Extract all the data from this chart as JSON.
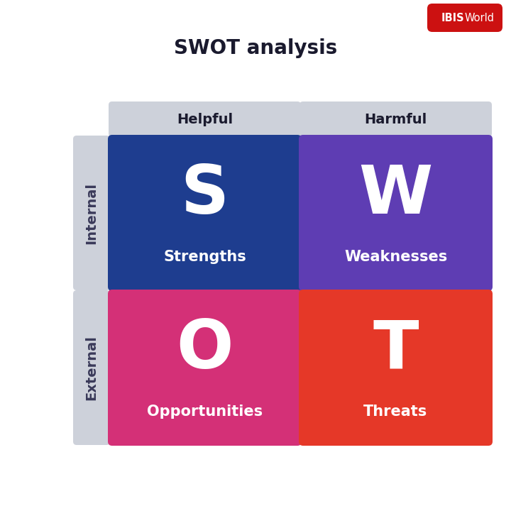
{
  "title": "SWOT analysis",
  "title_fontsize": 20,
  "title_color": "#1a1a2e",
  "background_color": "#ffffff",
  "col_headers": [
    "Helpful",
    "Harmful"
  ],
  "row_headers": [
    "Internal",
    "External"
  ],
  "header_bg_color": "#cdd1da",
  "header_text_color": "#1a1a2e",
  "header_fontsize": 14,
  "row_label_fontsize": 14,
  "row_label_color": "#3a3a5a",
  "cells": [
    {
      "letter": "S",
      "label": "Strengths",
      "bg_color": "#1e3d8f",
      "row": 0,
      "col": 0
    },
    {
      "letter": "W",
      "label": "Weaknesses",
      "bg_color": "#5e3db3",
      "row": 0,
      "col": 1
    },
    {
      "letter": "O",
      "label": "Opportunities",
      "bg_color": "#d43077",
      "row": 1,
      "col": 0
    },
    {
      "letter": "T",
      "label": "Threats",
      "bg_color": "#e53828",
      "row": 1,
      "col": 1
    }
  ],
  "letter_fontsize": 68,
  "label_fontsize": 15,
  "ibis_bold": "IBIS",
  "ibis_normal": "World",
  "ibis_bg": "#cc1111",
  "ibis_text_color": "#ffffff",
  "ibis_fontsize": 10.5
}
